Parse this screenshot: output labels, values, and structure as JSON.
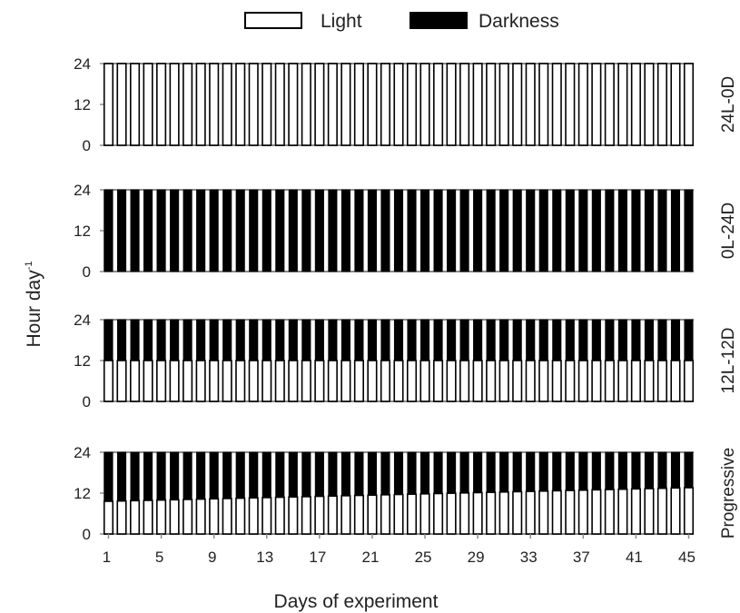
{
  "chart_data": {
    "type": "bar",
    "legend": {
      "position": "top-center",
      "entries": [
        {
          "label": "Light",
          "color": "#ffffff"
        },
        {
          "label": "Darkness",
          "color": "#000000"
        }
      ]
    },
    "xlabel": "Days of experiment",
    "ylabel_main": "Hour day",
    "ylabel_superscript": "-1",
    "x_tick_labels": [
      "1",
      "5",
      "9",
      "13",
      "17",
      "21",
      "25",
      "29",
      "33",
      "37",
      "41",
      "45"
    ],
    "x_ticks": [
      1,
      5,
      9,
      13,
      17,
      21,
      25,
      29,
      33,
      37,
      41,
      45
    ],
    "days": [
      1,
      45
    ],
    "y_tick_labels": [
      "0",
      "12",
      "24"
    ],
    "y_ticks": [
      0,
      12,
      24
    ],
    "ylim": [
      0,
      24
    ],
    "grid": false,
    "colors": {
      "light": "#ffffff",
      "dark": "#000000",
      "axis": "#8c8c8c"
    },
    "panels": [
      {
        "label": "24L-0D",
        "light_hours": [
          24,
          24
        ]
      },
      {
        "label": "0L-24D",
        "light_hours": [
          0,
          0
        ]
      },
      {
        "label": "12L-12D",
        "light_hours": [
          12,
          12
        ]
      },
      {
        "label": "Progressive",
        "light_hours": [
          9.6,
          13.6
        ]
      }
    ]
  }
}
